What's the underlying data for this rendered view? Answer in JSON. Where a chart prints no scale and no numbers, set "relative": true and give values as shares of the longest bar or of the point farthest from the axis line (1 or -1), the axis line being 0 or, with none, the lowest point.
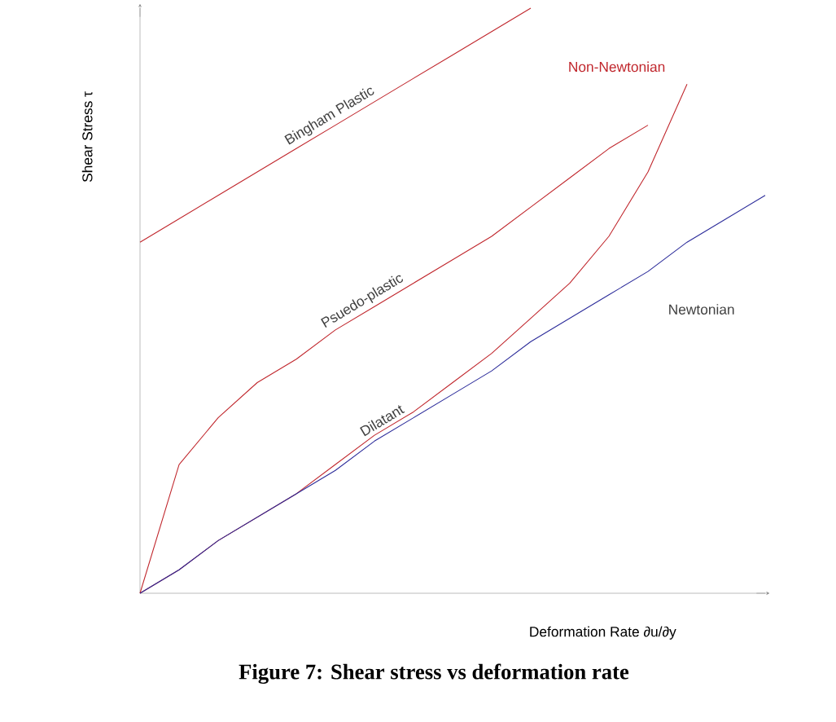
{
  "chart_data": {
    "type": "line",
    "title": "Figure 7: Shear stress vs deformation rate",
    "xlabel": "Deformation Rate ∂u/∂y",
    "ylabel": "Shear Stress τ",
    "relative": true,
    "categories": [
      null,
      null,
      null,
      null,
      null,
      null,
      null,
      null,
      null,
      null,
      null,
      null,
      null,
      null,
      null,
      null,
      null
    ],
    "annotations": [
      "Non-Newtonian"
    ],
    "series": [
      {
        "name": "Bingham Plastic",
        "color": "#c0262c",
        "values": [
          0.6,
          0.64,
          0.68,
          0.72,
          0.76,
          0.8,
          0.84,
          0.88,
          0.92,
          0.96,
          1.0,
          null,
          null,
          null,
          null,
          null,
          null
        ]
      },
      {
        "name": "Psuedo-plastic",
        "color": "#c0262c",
        "values": [
          0,
          0.22,
          0.3,
          0.36,
          0.4,
          0.45,
          0.49,
          0.53,
          0.57,
          0.61,
          0.66,
          0.71,
          0.76,
          0.8,
          null,
          null,
          null
        ]
      },
      {
        "name": "Dilatant",
        "color": "#c0262c",
        "values": [
          0,
          0.04,
          0.09,
          0.13,
          0.17,
          0.22,
          0.27,
          0.31,
          0.36,
          0.41,
          0.47,
          0.53,
          0.61,
          0.72,
          0.87,
          null,
          null
        ]
      },
      {
        "name": "Newtonian",
        "color": "#2b2b9a",
        "values": [
          0,
          0.04,
          0.09,
          0.13,
          0.17,
          0.21,
          0.26,
          0.3,
          0.34,
          0.38,
          0.43,
          0.47,
          0.51,
          0.55,
          0.6,
          0.64,
          0.68
        ]
      }
    ]
  }
}
